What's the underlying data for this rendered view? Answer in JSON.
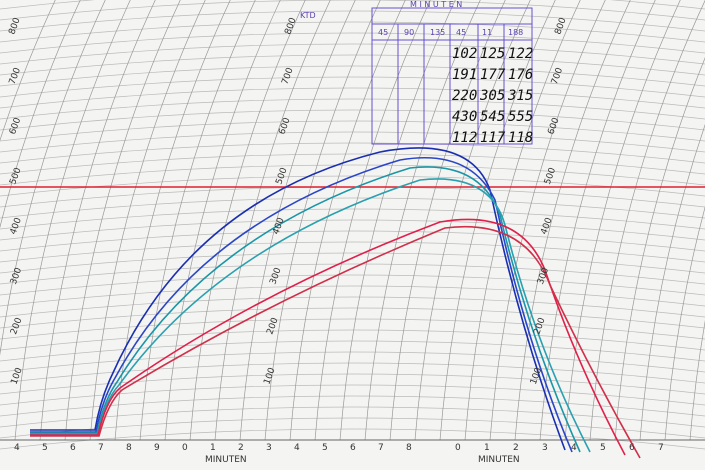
{
  "scale_left": [
    "800",
    "700",
    "600",
    "500",
    "400",
    "300",
    "200",
    "100"
  ],
  "scale_middle": [
    "800",
    "700",
    "600",
    "500",
    "400",
    "300",
    "200",
    "100"
  ],
  "scale_right": [
    "800",
    "700",
    "600",
    "500",
    "400",
    "300",
    "200",
    "100"
  ],
  "bottom_left": {
    "label": "MINUTEN",
    "ticks": [
      "4",
      "5",
      "6",
      "7",
      "8",
      "9",
      "0",
      "1",
      "2",
      "3",
      "4",
      "5",
      "6",
      "7",
      "8"
    ]
  },
  "bottom_right": {
    "label": "MINUTEN",
    "ticks": [
      "0",
      "1",
      "2",
      "3",
      "4",
      "5",
      "6",
      "7"
    ]
  },
  "table": {
    "header": "M I N U T E N",
    "ktd": "KTD",
    "columns": [
      "45",
      "90",
      "135",
      "45",
      "11",
      "188"
    ],
    "rows": [
      [
        "102",
        "125",
        "122"
      ],
      [
        "191",
        "177",
        "176"
      ],
      [
        "220",
        "305",
        "315"
      ],
      [
        "430",
        "545",
        "555"
      ],
      [
        "112",
        "117",
        "118"
      ]
    ]
  }
}
